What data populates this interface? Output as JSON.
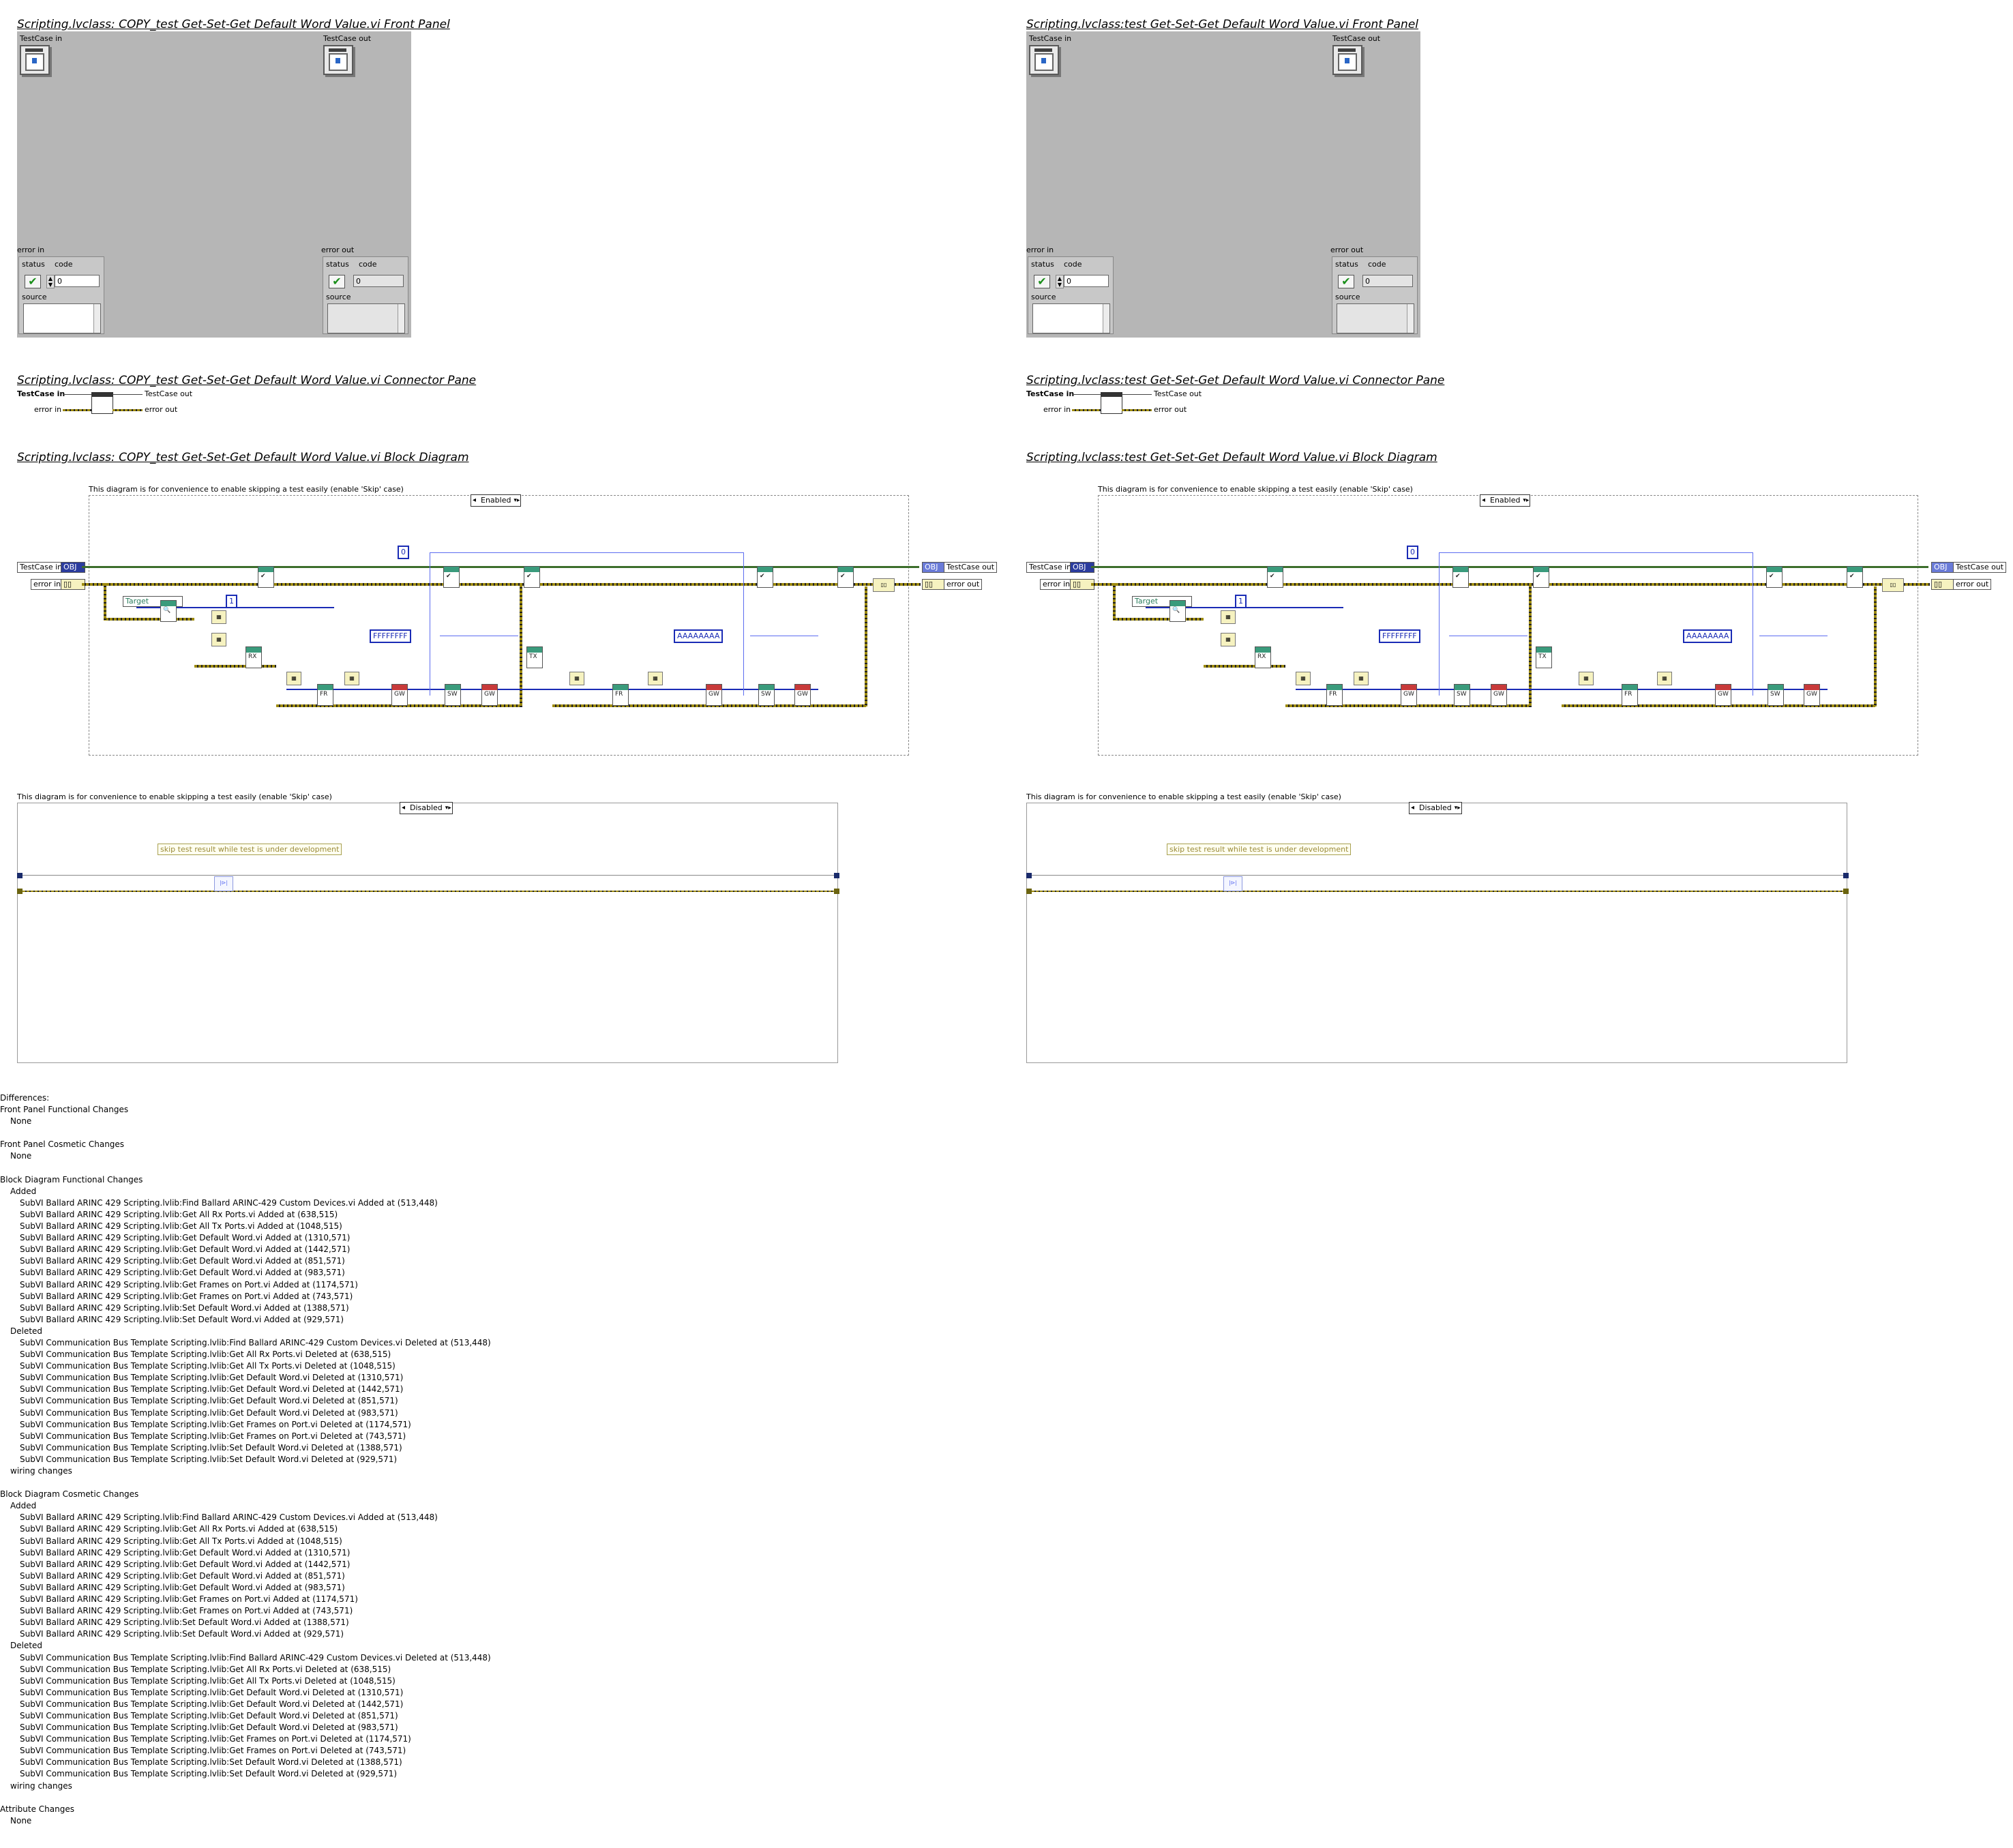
{
  "panels": [
    {
      "front_panel_title": "Scripting.lvclass:  COPY_test Get-Set-Get Default Word Value.vi Front Panel",
      "connector_title": "Scripting.lvclass:  COPY_test Get-Set-Get Default Word Value.vi Connector Pane",
      "block_title": "Scripting.lvclass:  COPY_test Get-Set-Get Default Word Value.vi Block Diagram"
    },
    {
      "front_panel_title": "Scripting.lvclass:test Get-Set-Get Default Word Value.vi Front Panel",
      "connector_title": "Scripting.lvclass:test Get-Set-Get Default Word Value.vi Connector Pane",
      "block_title": "Scripting.lvclass:test Get-Set-Get Default Word Value.vi Block Diagram"
    }
  ],
  "front_panel": {
    "testcase_in": "TestCase in",
    "testcase_out": "TestCase out",
    "error_in": "error in",
    "error_out": "error out",
    "status": "status",
    "code": "code",
    "code_value": "0",
    "source": "source"
  },
  "connector": {
    "testcase_in": "TestCase in",
    "testcase_out": "TestCase out",
    "error_in": "error in",
    "error_out": "error out"
  },
  "block": {
    "caption": "This diagram is for convenience to enable skipping a test easily (enable 'Skip' case)",
    "enabled_case": "Enabled",
    "disabled_case": "Disabled",
    "testcase_in": "TestCase in",
    "error_in": "error in",
    "testcase_out": "TestCase out",
    "error_out": "error out",
    "target": "Target",
    "const_zero": "0",
    "const_one": "1",
    "const_ffff": "FFFFFFFF",
    "const_aaaa": "AAAAAAAA",
    "skip_note": "skip test result while test is under development"
  },
  "differences": [
    {
      "level": 0,
      "text": "Differences:"
    },
    {
      "level": 0,
      "text": "Front Panel Functional Changes"
    },
    {
      "level": 1,
      "text": "None"
    },
    {
      "level": 0,
      "text": ""
    },
    {
      "level": 0,
      "text": "Front Panel Cosmetic Changes"
    },
    {
      "level": 1,
      "text": "None"
    },
    {
      "level": 0,
      "text": ""
    },
    {
      "level": 0,
      "text": "Block Diagram Functional Changes"
    },
    {
      "level": 1,
      "text": "Added"
    },
    {
      "level": 2,
      "text": "SubVI Ballard ARINC 429 Scripting.lvlib:Find Ballard ARINC-429 Custom Devices.vi Added at (513,448)"
    },
    {
      "level": 2,
      "text": "SubVI Ballard ARINC 429 Scripting.lvlib:Get All Rx Ports.vi Added at (638,515)"
    },
    {
      "level": 2,
      "text": "SubVI Ballard ARINC 429 Scripting.lvlib:Get All Tx Ports.vi Added at (1048,515)"
    },
    {
      "level": 2,
      "text": "SubVI Ballard ARINC 429 Scripting.lvlib:Get Default Word.vi Added at (1310,571)"
    },
    {
      "level": 2,
      "text": "SubVI Ballard ARINC 429 Scripting.lvlib:Get Default Word.vi Added at (1442,571)"
    },
    {
      "level": 2,
      "text": "SubVI Ballard ARINC 429 Scripting.lvlib:Get Default Word.vi Added at (851,571)"
    },
    {
      "level": 2,
      "text": "SubVI Ballard ARINC 429 Scripting.lvlib:Get Default Word.vi Added at (983,571)"
    },
    {
      "level": 2,
      "text": "SubVI Ballard ARINC 429 Scripting.lvlib:Get Frames on Port.vi Added at (1174,571)"
    },
    {
      "level": 2,
      "text": "SubVI Ballard ARINC 429 Scripting.lvlib:Get Frames on Port.vi Added at (743,571)"
    },
    {
      "level": 2,
      "text": "SubVI Ballard ARINC 429 Scripting.lvlib:Set Default Word.vi Added at (1388,571)"
    },
    {
      "level": 2,
      "text": "SubVI Ballard ARINC 429 Scripting.lvlib:Set Default Word.vi Added at (929,571)"
    },
    {
      "level": 1,
      "text": "Deleted"
    },
    {
      "level": 2,
      "text": "SubVI Communication Bus Template Scripting.lvlib:Find Ballard ARINC-429 Custom Devices.vi Deleted at (513,448)"
    },
    {
      "level": 2,
      "text": "SubVI Communication Bus Template Scripting.lvlib:Get All Rx Ports.vi Deleted at (638,515)"
    },
    {
      "level": 2,
      "text": "SubVI Communication Bus Template Scripting.lvlib:Get All Tx Ports.vi Deleted at (1048,515)"
    },
    {
      "level": 2,
      "text": "SubVI Communication Bus Template Scripting.lvlib:Get Default Word.vi Deleted at (1310,571)"
    },
    {
      "level": 2,
      "text": "SubVI Communication Bus Template Scripting.lvlib:Get Default Word.vi Deleted at (1442,571)"
    },
    {
      "level": 2,
      "text": "SubVI Communication Bus Template Scripting.lvlib:Get Default Word.vi Deleted at (851,571)"
    },
    {
      "level": 2,
      "text": "SubVI Communication Bus Template Scripting.lvlib:Get Default Word.vi Deleted at (983,571)"
    },
    {
      "level": 2,
      "text": "SubVI Communication Bus Template Scripting.lvlib:Get Frames on Port.vi Deleted at (1174,571)"
    },
    {
      "level": 2,
      "text": "SubVI Communication Bus Template Scripting.lvlib:Get Frames on Port.vi Deleted at (743,571)"
    },
    {
      "level": 2,
      "text": "SubVI Communication Bus Template Scripting.lvlib:Set Default Word.vi Deleted at (1388,571)"
    },
    {
      "level": 2,
      "text": "SubVI Communication Bus Template Scripting.lvlib:Set Default Word.vi Deleted at (929,571)"
    },
    {
      "level": 1,
      "text": "wiring changes"
    },
    {
      "level": 0,
      "text": ""
    },
    {
      "level": 0,
      "text": "Block Diagram Cosmetic Changes"
    },
    {
      "level": 1,
      "text": "Added"
    },
    {
      "level": 2,
      "text": "SubVI Ballard ARINC 429 Scripting.lvlib:Find Ballard ARINC-429 Custom Devices.vi Added at (513,448)"
    },
    {
      "level": 2,
      "text": "SubVI Ballard ARINC 429 Scripting.lvlib:Get All Rx Ports.vi Added at (638,515)"
    },
    {
      "level": 2,
      "text": "SubVI Ballard ARINC 429 Scripting.lvlib:Get All Tx Ports.vi Added at (1048,515)"
    },
    {
      "level": 2,
      "text": "SubVI Ballard ARINC 429 Scripting.lvlib:Get Default Word.vi Added at (1310,571)"
    },
    {
      "level": 2,
      "text": "SubVI Ballard ARINC 429 Scripting.lvlib:Get Default Word.vi Added at (1442,571)"
    },
    {
      "level": 2,
      "text": "SubVI Ballard ARINC 429 Scripting.lvlib:Get Default Word.vi Added at (851,571)"
    },
    {
      "level": 2,
      "text": "SubVI Ballard ARINC 429 Scripting.lvlib:Get Default Word.vi Added at (983,571)"
    },
    {
      "level": 2,
      "text": "SubVI Ballard ARINC 429 Scripting.lvlib:Get Frames on Port.vi Added at (1174,571)"
    },
    {
      "level": 2,
      "text": "SubVI Ballard ARINC 429 Scripting.lvlib:Get Frames on Port.vi Added at (743,571)"
    },
    {
      "level": 2,
      "text": "SubVI Ballard ARINC 429 Scripting.lvlib:Set Default Word.vi Added at (1388,571)"
    },
    {
      "level": 2,
      "text": "SubVI Ballard ARINC 429 Scripting.lvlib:Set Default Word.vi Added at (929,571)"
    },
    {
      "level": 1,
      "text": "Deleted"
    },
    {
      "level": 2,
      "text": "SubVI Communication Bus Template Scripting.lvlib:Find Ballard ARINC-429 Custom Devices.vi Deleted at (513,448)"
    },
    {
      "level": 2,
      "text": "SubVI Communication Bus Template Scripting.lvlib:Get All Rx Ports.vi Deleted at (638,515)"
    },
    {
      "level": 2,
      "text": "SubVI Communication Bus Template Scripting.lvlib:Get All Tx Ports.vi Deleted at (1048,515)"
    },
    {
      "level": 2,
      "text": "SubVI Communication Bus Template Scripting.lvlib:Get Default Word.vi Deleted at (1310,571)"
    },
    {
      "level": 2,
      "text": "SubVI Communication Bus Template Scripting.lvlib:Get Default Word.vi Deleted at (1442,571)"
    },
    {
      "level": 2,
      "text": "SubVI Communication Bus Template Scripting.lvlib:Get Default Word.vi Deleted at (851,571)"
    },
    {
      "level": 2,
      "text": "SubVI Communication Bus Template Scripting.lvlib:Get Default Word.vi Deleted at (983,571)"
    },
    {
      "level": 2,
      "text": "SubVI Communication Bus Template Scripting.lvlib:Get Frames on Port.vi Deleted at (1174,571)"
    },
    {
      "level": 2,
      "text": "SubVI Communication Bus Template Scripting.lvlib:Get Frames on Port.vi Deleted at (743,571)"
    },
    {
      "level": 2,
      "text": "SubVI Communication Bus Template Scripting.lvlib:Set Default Word.vi Deleted at (1388,571)"
    },
    {
      "level": 2,
      "text": "SubVI Communication Bus Template Scripting.lvlib:Set Default Word.vi Deleted at (929,571)"
    },
    {
      "level": 1,
      "text": "wiring changes"
    },
    {
      "level": 0,
      "text": ""
    },
    {
      "level": 0,
      "text": "Attribute Changes"
    },
    {
      "level": 1,
      "text": "None"
    }
  ]
}
